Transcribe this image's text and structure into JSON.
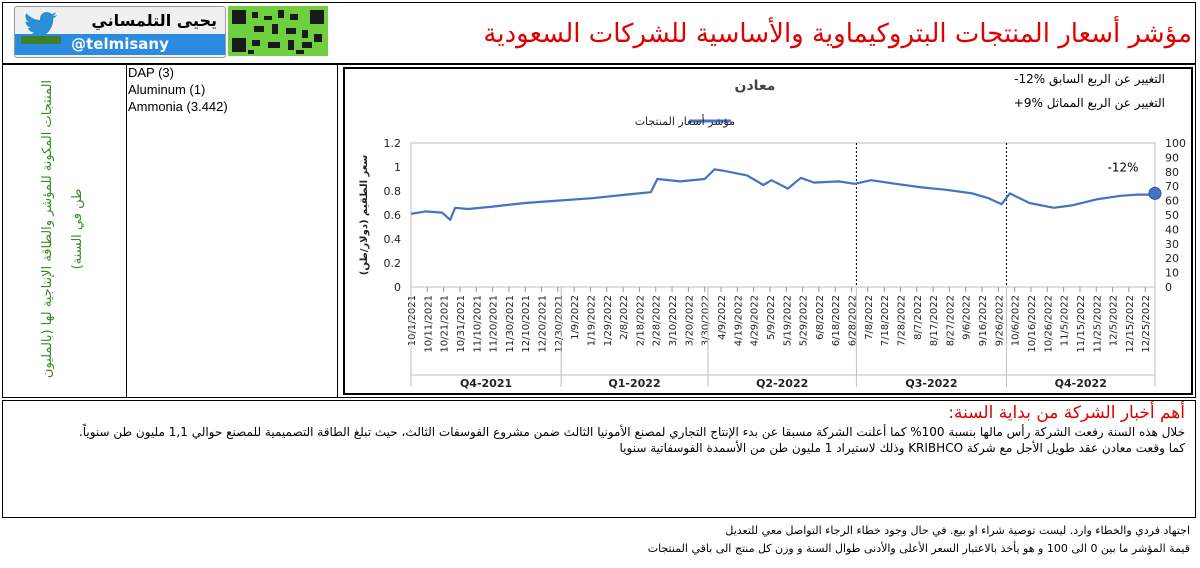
{
  "header": {
    "title": "مؤشر أسعار المنتجات البتروكيماوية والأساسية للشركات السعودية",
    "author_name": "يحيى التلمساني",
    "handle": "@telmisany"
  },
  "colors": {
    "title": "#e00000",
    "line": "#4472c4",
    "side_text": "#3a8a2a"
  },
  "side_label": "المنتجات المكونة للمؤشر والطاقة الإنتاجية لها (بالمليون طن في السنة)",
  "products": [
    "DAP (3)",
    "Aluminum (1)",
    "Ammonia (3.442)"
  ],
  "chart_data": {
    "type": "line",
    "title": "معادن",
    "legend": "مؤشر أسعار المنتجات",
    "legend_placement": "top-center",
    "ylabel_left": "سعر الطقيم (دولار/طن)",
    "notes": [
      "التغيير عن الربع السابق %12-",
      "التغيير عن الربع المماثل %9+"
    ],
    "annotation": "-12%",
    "yleft": {
      "min": 0,
      "max": 1.2,
      "ticks": [
        "0",
        "0.2",
        "0.4",
        "0.6",
        "0.8",
        "1",
        "1.2"
      ]
    },
    "yright": {
      "min": 0,
      "max": 100,
      "ticks": [
        "0",
        "10",
        "20",
        "30",
        "40",
        "50",
        "60",
        "70",
        "80",
        "90",
        "100"
      ]
    },
    "grid": false,
    "date_ticks": [
      "10/1/2021",
      "10/11/2021",
      "10/21/2021",
      "10/31/2021",
      "11/10/2021",
      "11/20/2021",
      "11/30/2021",
      "12/10/2021",
      "12/20/2021",
      "12/30/2021",
      "1/9/2022",
      "1/19/2022",
      "1/29/2022",
      "2/8/2022",
      "2/18/2022",
      "2/28/2022",
      "3/10/2022",
      "3/20/2022",
      "3/30/2022",
      "4/9/2022",
      "4/19/2022",
      "4/29/2022",
      "5/9/2022",
      "5/19/2022",
      "5/29/2022",
      "6/8/2022",
      "6/18/2022",
      "6/28/2022",
      "7/8/2022",
      "7/18/2022",
      "7/28/2022",
      "8/7/2022",
      "8/17/2022",
      "8/27/2022",
      "9/6/2022",
      "9/16/2022",
      "9/26/2022",
      "10/6/2022",
      "10/16/2022",
      "10/26/2022",
      "11/5/2022",
      "11/15/2022",
      "11/25/2022",
      "12/5/2022",
      "12/15/2022",
      "12/25/2022"
    ],
    "quarters": [
      "Q4-2021",
      "Q1-2022",
      "Q2-2022",
      "Q3-2022",
      "Q4-2022"
    ],
    "series": [
      {
        "x": [
          "10/1/2021",
          "10/10/2021",
          "10/20/2021",
          "10/25/2021",
          "10/28/2021",
          "11/5/2021",
          "11/20/2021",
          "12/10/2021",
          "12/30/2021",
          "1/20/2022",
          "2/10/2022",
          "2/25/2022",
          "3/1/2022",
          "3/15/2022",
          "3/30/2022",
          "4/5/2022",
          "4/10/2022",
          "4/25/2022",
          "5/5/2022",
          "5/10/2022",
          "5/20/2022",
          "5/28/2022",
          "6/5/2022",
          "6/20/2022",
          "6/30/2022",
          "7/10/2022",
          "7/25/2022",
          "8/10/2022",
          "8/25/2022",
          "9/10/2022",
          "9/20/2022",
          "9/28/2022",
          "10/3/2022",
          "10/15/2022",
          "10/30/2022",
          "11/10/2022",
          "11/25/2022",
          "12/10/2022",
          "12/20/2022",
          "12/31/2022"
        ],
        "y": [
          0.61,
          0.63,
          0.62,
          0.56,
          0.66,
          0.65,
          0.67,
          0.7,
          0.72,
          0.74,
          0.77,
          0.79,
          0.9,
          0.88,
          0.9,
          0.98,
          0.97,
          0.93,
          0.85,
          0.89,
          0.82,
          0.91,
          0.87,
          0.88,
          0.86,
          0.89,
          0.86,
          0.83,
          0.81,
          0.78,
          0.74,
          0.69,
          0.78,
          0.7,
          0.66,
          0.68,
          0.73,
          0.76,
          0.77,
          0.77
        ]
      }
    ],
    "last_point_right": 65
  },
  "news": {
    "title": "أهم أخبار الشركة من بداية السنة:",
    "lines": [
      "خلال هذه السنة رفعت الشركة رأس مالها بنسبة 100% كما أعلنت الشركة مسبقا عن بدء الإنتاج التجاري لمصنع الأمونيا الثالث ضمن مشروع الفوسفات الثالث، حيث تبلغ الطاقة التصميمية للمصنع حوالي 1,1 مليون طن سنوياً.",
      "كما وقعت معادن عقد طويل الأجل مع شركة KRIBHCO وذلك لاستيراد 1 مليون طن من الأسمدة الفوسفاتية  سنويا"
    ]
  },
  "footer": [
    "اجتهاد فردي والخطاء وارد. ليست توصية شراء او بيع. في حال وجود خطاء الرجاء التواصل معي للتعديل",
    "قيمة المؤشر ما بين 0 الى 100 و هو يأخذ بالاعتبار السعر الأعلى والأدنى طوال السنة و وزن كل منتج الى باقي المنتجات"
  ]
}
